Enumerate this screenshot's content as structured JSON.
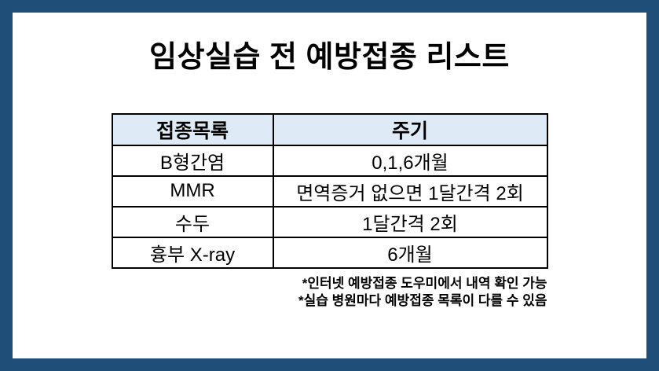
{
  "page": {
    "title": "임상실습 전 예방접종 리스트"
  },
  "table": {
    "headers": [
      "접종목록",
      "주기"
    ],
    "rows": [
      [
        "B형간염",
        "0,1,6개월"
      ],
      [
        "MMR",
        "면역증거 없으면 1달간격 2회"
      ],
      [
        "수두",
        "1달간격 2회"
      ],
      [
        "흉부 X-ray",
        "6개월"
      ]
    ]
  },
  "footnotes": [
    "*인터넷 예방접종 도우미에서 내역 확인 가능",
    "*실습 병원마다 예방접종 목록이 다를 수 있음"
  ],
  "colors": {
    "frame": "#1F4E79",
    "table_header_fill": "#DEEAF6",
    "table_border": "#000000",
    "text": "#000000",
    "background": "#FFFFFF"
  }
}
